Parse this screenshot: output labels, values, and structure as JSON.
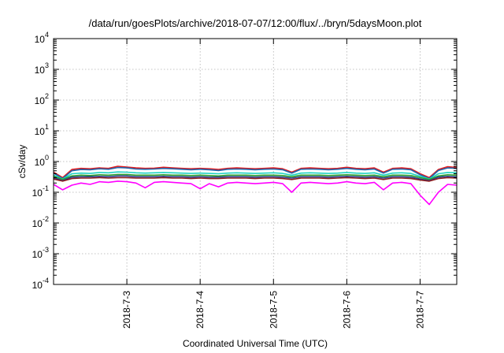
{
  "chart_data": {
    "type": "line",
    "title": "/data/run/goesPlots/archive/2018-07-07/12:00/flux/../bryn/5daysMoon.plot",
    "xlabel": "Coordinated Universal Time (UTC)",
    "ylabel": "cSv/day",
    "y_scale": "log",
    "ylim": [
      0.0001,
      10000
    ],
    "y_ticks": [
      {
        "base": "10",
        "exp": "-4",
        "value": 0.0001
      },
      {
        "base": "10",
        "exp": "-3",
        "value": 0.001
      },
      {
        "base": "10",
        "exp": "-2",
        "value": 0.01
      },
      {
        "base": "10",
        "exp": "-1",
        "value": 0.1
      },
      {
        "base": "10",
        "exp": "0",
        "value": 1
      },
      {
        "base": "10",
        "exp": "1",
        "value": 10
      },
      {
        "base": "10",
        "exp": "2",
        "value": 100
      },
      {
        "base": "10",
        "exp": "3",
        "value": 1000
      },
      {
        "base": "10",
        "exp": "4",
        "value": 10000
      }
    ],
    "xlim": [
      "2018-07-02T00:00",
      "2018-07-07T12:00"
    ],
    "x_ticks": [
      {
        "label": "2018-7-3",
        "value": "2018-07-03T00:00"
      },
      {
        "label": "2018-7-4",
        "value": "2018-07-04T00:00"
      },
      {
        "label": "2018-7-5",
        "value": "2018-07-05T00:00"
      },
      {
        "label": "2018-7-6",
        "value": "2018-07-06T00:00"
      },
      {
        "label": "2018-7-7",
        "value": "2018-07-07T00:00"
      }
    ],
    "grid": true,
    "legend": "none",
    "x": [
      "2018-07-02T00:00",
      "2018-07-02T03:00",
      "2018-07-02T06:00",
      "2018-07-02T09:00",
      "2018-07-02T12:00",
      "2018-07-02T15:00",
      "2018-07-02T18:00",
      "2018-07-02T21:00",
      "2018-07-03T00:00",
      "2018-07-03T03:00",
      "2018-07-03T06:00",
      "2018-07-03T09:00",
      "2018-07-03T12:00",
      "2018-07-03T15:00",
      "2018-07-03T18:00",
      "2018-07-03T21:00",
      "2018-07-04T00:00",
      "2018-07-04T03:00",
      "2018-07-04T06:00",
      "2018-07-04T09:00",
      "2018-07-04T12:00",
      "2018-07-04T15:00",
      "2018-07-04T18:00",
      "2018-07-04T21:00",
      "2018-07-05T00:00",
      "2018-07-05T03:00",
      "2018-07-05T06:00",
      "2018-07-05T09:00",
      "2018-07-05T12:00",
      "2018-07-05T15:00",
      "2018-07-05T18:00",
      "2018-07-05T21:00",
      "2018-07-06T00:00",
      "2018-07-06T03:00",
      "2018-07-06T06:00",
      "2018-07-06T09:00",
      "2018-07-06T12:00",
      "2018-07-06T15:00",
      "2018-07-06T18:00",
      "2018-07-06T21:00",
      "2018-07-07T00:00",
      "2018-07-07T03:00",
      "2018-07-07T06:00",
      "2018-07-07T09:00",
      "2018-07-07T12:00"
    ],
    "series": [
      {
        "color": "#e41a1c",
        "values": [
          0.45,
          0.3,
          0.55,
          0.6,
          0.58,
          0.62,
          0.6,
          0.7,
          0.66,
          0.62,
          0.6,
          0.61,
          0.65,
          0.62,
          0.6,
          0.58,
          0.6,
          0.58,
          0.55,
          0.6,
          0.62,
          0.6,
          0.58,
          0.6,
          0.62,
          0.58,
          0.45,
          0.6,
          0.62,
          0.6,
          0.58,
          0.6,
          0.65,
          0.6,
          0.58,
          0.62,
          0.45,
          0.6,
          0.62,
          0.58,
          0.4,
          0.3,
          0.55,
          0.68,
          0.64
        ]
      },
      {
        "color": "#2166ac",
        "values": [
          0.42,
          0.28,
          0.5,
          0.55,
          0.54,
          0.58,
          0.56,
          0.64,
          0.62,
          0.57,
          0.56,
          0.57,
          0.6,
          0.58,
          0.56,
          0.54,
          0.56,
          0.54,
          0.51,
          0.56,
          0.57,
          0.56,
          0.54,
          0.56,
          0.57,
          0.54,
          0.42,
          0.56,
          0.57,
          0.56,
          0.54,
          0.56,
          0.6,
          0.56,
          0.54,
          0.57,
          0.42,
          0.56,
          0.57,
          0.54,
          0.37,
          0.28,
          0.51,
          0.62,
          0.6
        ]
      },
      {
        "color": "#1fd3c2",
        "values": [
          0.36,
          0.27,
          0.4,
          0.42,
          0.41,
          0.44,
          0.43,
          0.46,
          0.45,
          0.43,
          0.42,
          0.43,
          0.44,
          0.43,
          0.42,
          0.41,
          0.42,
          0.41,
          0.4,
          0.42,
          0.43,
          0.42,
          0.41,
          0.42,
          0.43,
          0.41,
          0.36,
          0.42,
          0.43,
          0.42,
          0.41,
          0.42,
          0.44,
          0.42,
          0.41,
          0.43,
          0.36,
          0.42,
          0.43,
          0.41,
          0.33,
          0.27,
          0.4,
          0.44,
          0.43
        ]
      },
      {
        "color": "#2ca02c",
        "values": [
          0.33,
          0.26,
          0.34,
          0.36,
          0.35,
          0.37,
          0.36,
          0.38,
          0.38,
          0.36,
          0.36,
          0.36,
          0.37,
          0.36,
          0.36,
          0.35,
          0.36,
          0.35,
          0.34,
          0.36,
          0.36,
          0.36,
          0.35,
          0.36,
          0.36,
          0.35,
          0.32,
          0.36,
          0.36,
          0.36,
          0.35,
          0.36,
          0.37,
          0.36,
          0.35,
          0.36,
          0.32,
          0.36,
          0.36,
          0.35,
          0.3,
          0.26,
          0.34,
          0.37,
          0.36
        ]
      },
      {
        "color": "#2c3e8c",
        "values": [
          0.3,
          0.24,
          0.31,
          0.32,
          0.32,
          0.33,
          0.32,
          0.34,
          0.34,
          0.32,
          0.32,
          0.32,
          0.33,
          0.32,
          0.32,
          0.31,
          0.32,
          0.31,
          0.31,
          0.32,
          0.32,
          0.32,
          0.31,
          0.32,
          0.32,
          0.31,
          0.29,
          0.32,
          0.32,
          0.32,
          0.31,
          0.32,
          0.33,
          0.32,
          0.31,
          0.32,
          0.29,
          0.32,
          0.32,
          0.31,
          0.27,
          0.24,
          0.31,
          0.33,
          0.32
        ]
      },
      {
        "color": "#8b1a1a",
        "values": [
          0.27,
          0.23,
          0.28,
          0.29,
          0.29,
          0.3,
          0.29,
          0.3,
          0.3,
          0.29,
          0.29,
          0.29,
          0.3,
          0.29,
          0.29,
          0.28,
          0.29,
          0.28,
          0.28,
          0.29,
          0.29,
          0.29,
          0.28,
          0.29,
          0.29,
          0.28,
          0.26,
          0.29,
          0.29,
          0.29,
          0.28,
          0.29,
          0.3,
          0.29,
          0.28,
          0.29,
          0.26,
          0.29,
          0.29,
          0.28,
          0.25,
          0.23,
          0.28,
          0.3,
          0.29
        ]
      },
      {
        "color": "#ff00ff",
        "values": [
          0.18,
          0.12,
          0.17,
          0.2,
          0.18,
          0.22,
          0.21,
          0.23,
          0.22,
          0.2,
          0.14,
          0.21,
          0.22,
          0.21,
          0.2,
          0.19,
          0.13,
          0.19,
          0.15,
          0.2,
          0.21,
          0.2,
          0.19,
          0.2,
          0.21,
          0.19,
          0.1,
          0.2,
          0.21,
          0.2,
          0.19,
          0.2,
          0.22,
          0.2,
          0.19,
          0.21,
          0.12,
          0.2,
          0.21,
          0.19,
          0.08,
          0.04,
          0.1,
          0.18,
          0.17
        ]
      }
    ]
  }
}
